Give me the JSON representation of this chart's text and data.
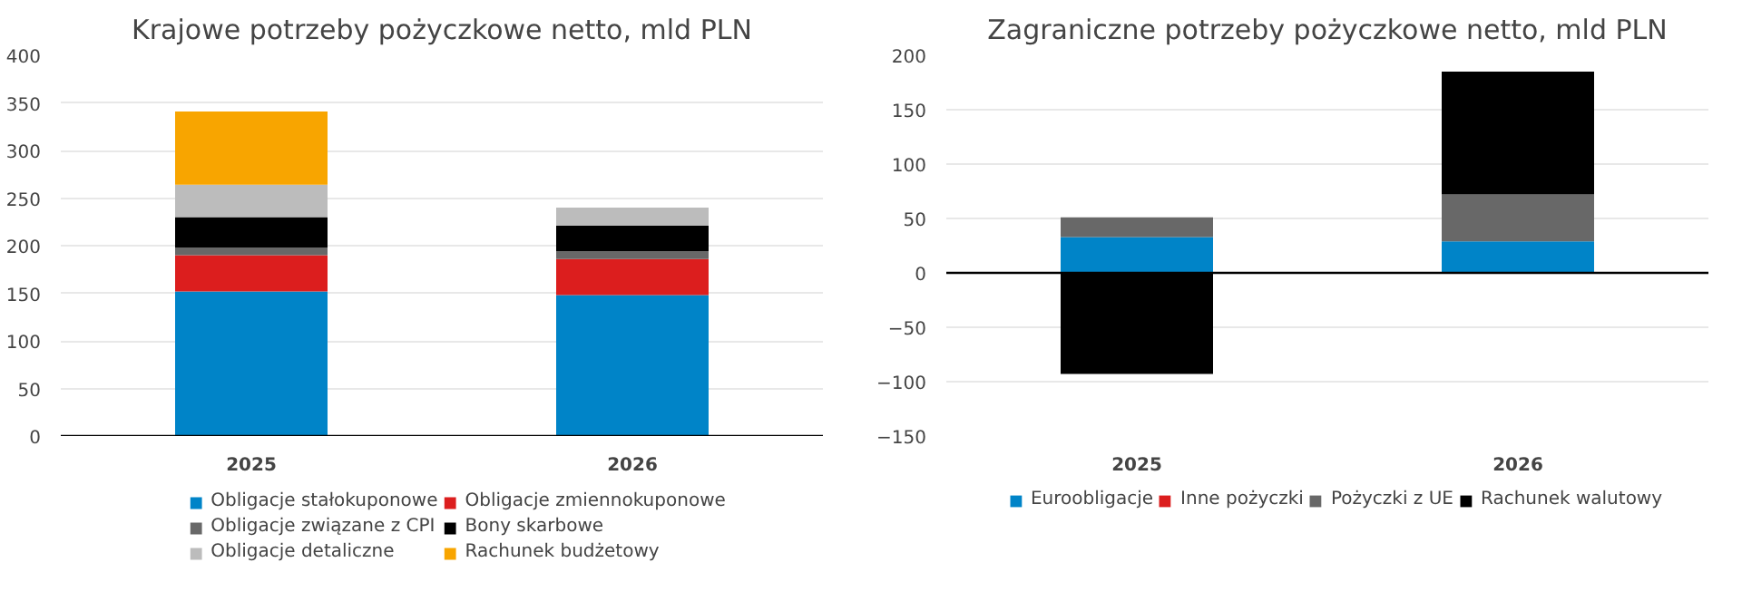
{
  "chart_data": [
    {
      "type": "bar",
      "title": "Krajowe potrzeby pożyczkowe netto, mld PLN",
      "categories": [
        "2025",
        "2026"
      ],
      "stacked": true,
      "ylim": [
        0,
        400
      ],
      "yticks": [
        0,
        50,
        100,
        150,
        200,
        250,
        300,
        350,
        400
      ],
      "grid": "y",
      "legend": "bottom",
      "series": [
        {
          "name": "Obligacje stałokuponowe",
          "color": "#0084c8",
          "values": [
            152,
            148
          ]
        },
        {
          "name": "Obligacje zmiennokuponowe",
          "color": "#dc1e1e",
          "values": [
            38,
            38
          ]
        },
        {
          "name": "Obligacje związane z CPI",
          "color": "#686868",
          "values": [
            8,
            8
          ]
        },
        {
          "name": "Bony skarbowe",
          "color": "#000000",
          "values": [
            32,
            27
          ]
        },
        {
          "name": "Obligacje detaliczne",
          "color": "#bcbcbc",
          "values": [
            34,
            19
          ]
        },
        {
          "name": "Rachunek budżetowy",
          "color": "#f8a500",
          "values": [
            77,
            0
          ]
        }
      ]
    },
    {
      "type": "bar",
      "title": "Zagraniczne potrzeby pożyczkowe netto, mld PLN",
      "categories": [
        "2025",
        "2026"
      ],
      "stacked": true,
      "ylim": [
        -150,
        200
      ],
      "yticks": [
        -150,
        -100,
        -50,
        0,
        50,
        100,
        150,
        200
      ],
      "grid": "y",
      "legend": "bottom",
      "series": [
        {
          "name": "Euroobligacje",
          "color": "#0084c8",
          "values": [
            33,
            29
          ]
        },
        {
          "name": "Inne pożyczki",
          "color": "#dc1e1e",
          "values": [
            0,
            0
          ]
        },
        {
          "name": "Pożyczki z UE",
          "color": "#686868",
          "values": [
            18,
            43
          ]
        },
        {
          "name": "Rachunek walutowy",
          "color": "#000000",
          "values": [
            -93,
            113
          ]
        }
      ]
    }
  ]
}
